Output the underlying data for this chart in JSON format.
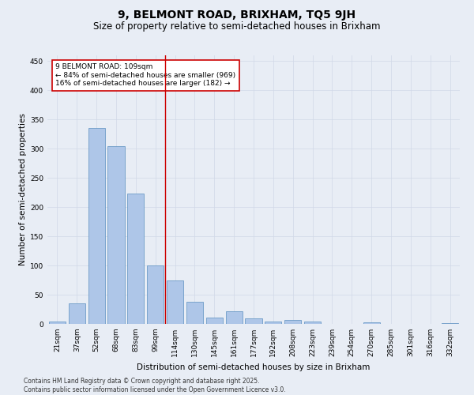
{
  "title_line1": "9, BELMONT ROAD, BRIXHAM, TQ5 9JH",
  "title_line2": "Size of property relative to semi-detached houses in Brixham",
  "xlabel": "Distribution of semi-detached houses by size in Brixham",
  "ylabel": "Number of semi-detached properties",
  "categories": [
    "21sqm",
    "37sqm",
    "52sqm",
    "68sqm",
    "83sqm",
    "99sqm",
    "114sqm",
    "130sqm",
    "145sqm",
    "161sqm",
    "177sqm",
    "192sqm",
    "208sqm",
    "223sqm",
    "239sqm",
    "254sqm",
    "270sqm",
    "285sqm",
    "301sqm",
    "316sqm",
    "332sqm"
  ],
  "values": [
    4,
    35,
    335,
    305,
    223,
    100,
    75,
    38,
    11,
    21,
    10,
    4,
    7,
    4,
    0,
    0,
    3,
    0,
    0,
    0,
    1
  ],
  "bar_color": "#aec6e8",
  "bar_edge_color": "#5a8fc0",
  "property_line_x": 5.5,
  "annotation_text": "9 BELMONT ROAD: 109sqm\n← 84% of semi-detached houses are smaller (969)\n16% of semi-detached houses are larger (182) →",
  "annotation_box_color": "#ffffff",
  "annotation_box_edge": "#cc0000",
  "vline_color": "#cc0000",
  "grid_color": "#d0d8e8",
  "background_color": "#e8edf5",
  "ylim": [
    0,
    460
  ],
  "yticks": [
    0,
    50,
    100,
    150,
    200,
    250,
    300,
    350,
    400,
    450
  ],
  "footer_text": "Contains HM Land Registry data © Crown copyright and database right 2025.\nContains public sector information licensed under the Open Government Licence v3.0.",
  "title_fontsize": 10,
  "subtitle_fontsize": 8.5,
  "axis_label_fontsize": 7.5,
  "tick_fontsize": 6.5,
  "annotation_fontsize": 6.5,
  "footer_fontsize": 5.5
}
